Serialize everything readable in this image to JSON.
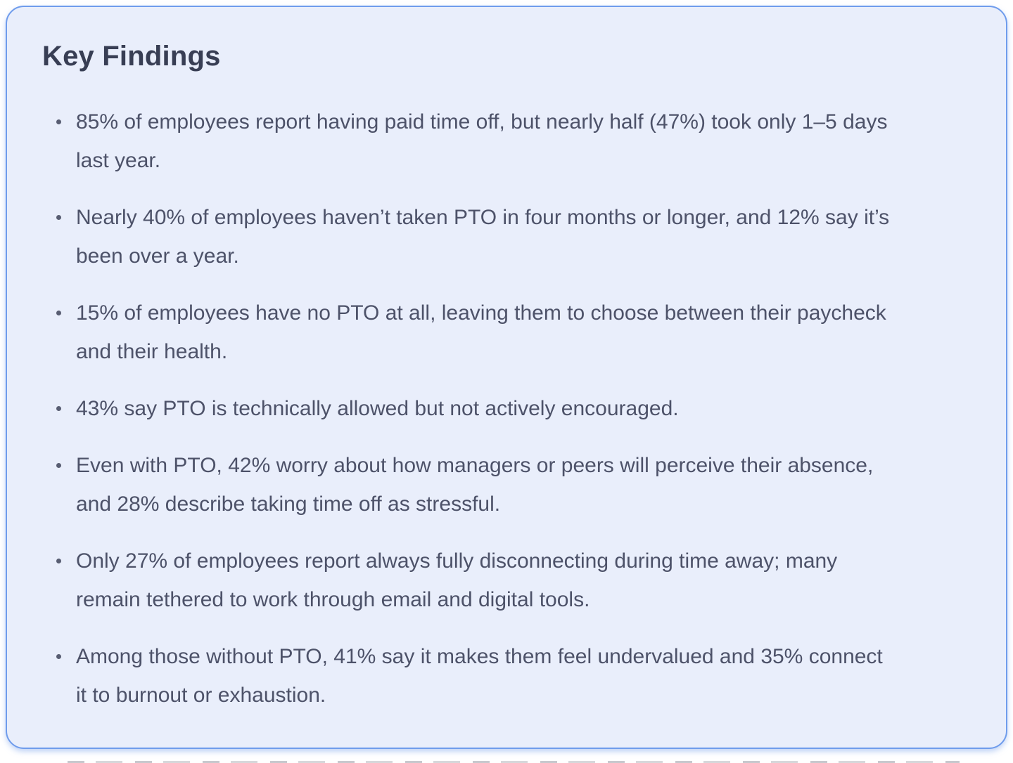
{
  "card": {
    "title": "Key Findings",
    "findings": [
      "85% of employees report having paid time off, but nearly half (47%) took only 1–5 days last year.",
      "Nearly 40% of employees haven’t taken PTO in four months or longer, and 12% say it’s been over a year.",
      "15% of employees have no PTO at all, leaving them to choose between their paycheck and their health.",
      "43% say PTO is technically allowed but not actively encouraged.",
      "Even with PTO, 42% worry about how managers or peers will perceive their absence, and 28% describe taking time off as stressful.",
      "Only 27% of employees report always fully disconnecting during time away; many remain tethered to work through email and digital tools.",
      "Among those without PTO, 41% say it makes them feel undervalued and 35% connect it to burnout or exhaustion."
    ],
    "colors": {
      "card_background": "#e9eefb",
      "card_border": "#6f9cec",
      "heading_text": "#383e54",
      "body_text": "#4d5269",
      "bullet_dot": "#585d72",
      "page_background": "#ffffff"
    }
  }
}
